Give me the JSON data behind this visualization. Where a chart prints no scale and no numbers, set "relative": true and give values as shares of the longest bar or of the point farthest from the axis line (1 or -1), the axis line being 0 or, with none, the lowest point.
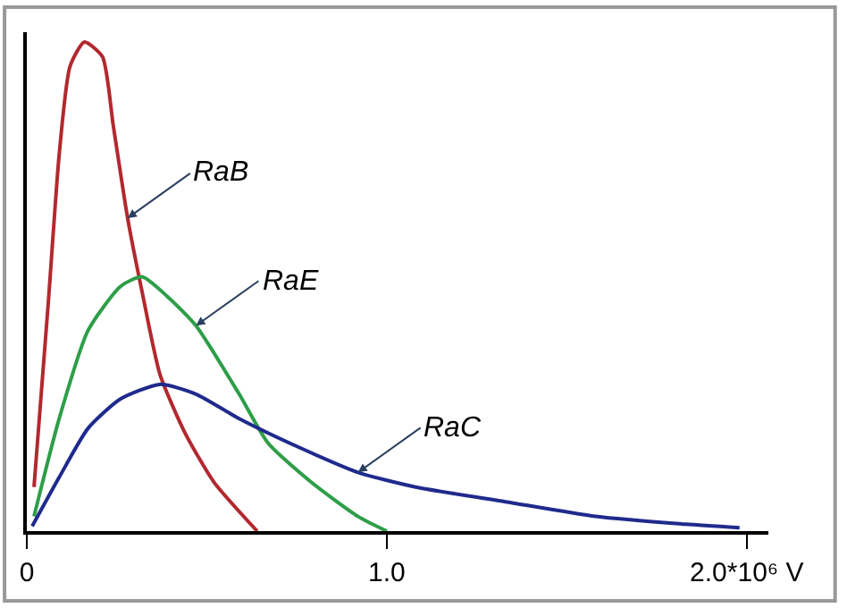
{
  "chart_data": {
    "type": "line",
    "relative": true,
    "marker": "none",
    "line_style": "solid",
    "legend": false,
    "tick_labels": "x",
    "xlim": [
      0,
      2.06
    ],
    "xticks": [
      0,
      {
        "value": 1.0,
        "label": "1.0"
      },
      {
        "value": 2.0,
        "label": "2.0*10⁶ V"
      }
    ],
    "series": [
      {
        "name": "RaB",
        "color": "#b3282f",
        "x": [
          0.02,
          0.06,
          0.09,
          0.12,
          0.16,
          0.21,
          0.24,
          0.28,
          0.32,
          0.37,
          0.44,
          0.52,
          0.64
        ],
        "values": [
          0.09,
          0.47,
          0.77,
          0.95,
          1.0,
          0.97,
          0.83,
          0.64,
          0.49,
          0.32,
          0.2,
          0.1,
          0.0
        ]
      },
      {
        "name": "RaE",
        "color": "#2e9e48",
        "x": [
          0.02,
          0.09,
          0.17,
          0.26,
          0.32,
          0.39,
          0.47,
          0.59,
          0.67,
          0.79,
          0.92,
          1.0
        ],
        "values": [
          0.03,
          0.23,
          0.41,
          0.5,
          0.52,
          0.48,
          0.42,
          0.28,
          0.18,
          0.1,
          0.03,
          0.0
        ]
      },
      {
        "name": "RaC",
        "color": "#1f2a8c",
        "x": [
          0.015,
          0.09,
          0.17,
          0.26,
          0.37,
          0.47,
          0.59,
          0.76,
          0.92,
          1.08,
          1.33,
          1.58,
          1.83,
          1.98
        ],
        "values": [
          0.01,
          0.11,
          0.21,
          0.27,
          0.3,
          0.28,
          0.23,
          0.17,
          0.12,
          0.09,
          0.06,
          0.03,
          0.014,
          0.007
        ]
      }
    ]
  }
}
